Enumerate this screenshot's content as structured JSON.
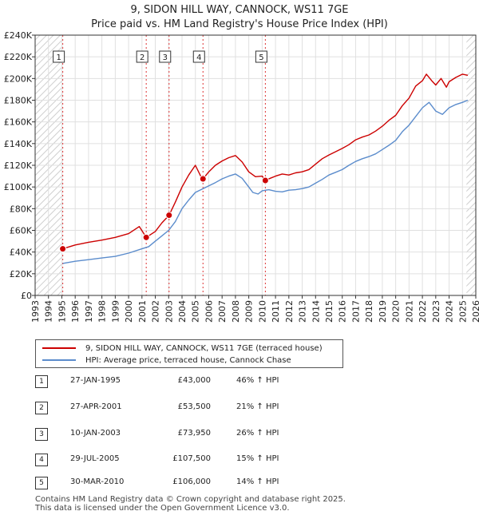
{
  "chart_data": {
    "type": "line",
    "title": "9, SIDON HILL WAY, CANNOCK, WS11 7GE",
    "subtitle": "Price paid vs. HM Land Registry's House Price Index (HPI)",
    "xlabel": "",
    "ylabel": "",
    "xlim": [
      1993,
      2026
    ],
    "ylim": [
      0,
      240000
    ],
    "x_ticks": [
      "1993",
      "1994",
      "1995",
      "1996",
      "1997",
      "1998",
      "1999",
      "2000",
      "2001",
      "2002",
      "2003",
      "2004",
      "2005",
      "2006",
      "2007",
      "2008",
      "2009",
      "2010",
      "2011",
      "2012",
      "2013",
      "2014",
      "2015",
      "2016",
      "2017",
      "2018",
      "2019",
      "2020",
      "2021",
      "2022",
      "2023",
      "2024",
      "2025",
      "2026"
    ],
    "y_ticks": [
      "£0",
      "£20K",
      "£40K",
      "£60K",
      "£80K",
      "£100K",
      "£120K",
      "£140K",
      "£160K",
      "£180K",
      "£200K",
      "£220K",
      "£240K"
    ],
    "hatched_ranges": [
      [
        1993,
        1995.07
      ],
      [
        2025.3,
        2026
      ]
    ],
    "series": [
      {
        "name": "9, SIDON HILL WAY, CANNOCK, WS11 7GE (terraced house)",
        "color": "#cc0000",
        "x": [
          1995.07,
          1996,
          1997,
          1998,
          1999,
          2000,
          2000.8,
          2001.32,
          2002,
          2002.5,
          2003.03,
          2003.5,
          2004,
          2004.5,
          2005,
          2005.4,
          2005.57,
          2006,
          2006.5,
          2007,
          2007.5,
          2008,
          2008.5,
          2009,
          2009.5,
          2010,
          2010.24,
          2010.6,
          2011,
          2011.5,
          2012,
          2012.5,
          2013,
          2013.5,
          2014,
          2014.5,
          2015,
          2015.5,
          2016,
          2016.5,
          2017,
          2017.5,
          2018,
          2018.5,
          2019,
          2019.5,
          2020,
          2020.5,
          2021,
          2021.5,
          2022,
          2022.3,
          2022.7,
          2023,
          2023.4,
          2023.8,
          2024,
          2024.5,
          2025,
          2025.4
        ],
        "values": [
          43000,
          46500,
          49000,
          51000,
          53500,
          57000,
          63500,
          53500,
          59000,
          67000,
          73950,
          86000,
          100000,
          111000,
          120000,
          110000,
          107500,
          114000,
          120000,
          124000,
          127000,
          129000,
          123000,
          114000,
          109500,
          110000,
          106000,
          108000,
          110000,
          112000,
          111000,
          113000,
          114000,
          116000,
          121000,
          126000,
          129500,
          132500,
          135500,
          139000,
          143500,
          146000,
          148000,
          151500,
          156000,
          161500,
          166000,
          175000,
          182000,
          193000,
          198000,
          204000,
          198000,
          194000,
          200000,
          192000,
          197000,
          201000,
          204000,
          203000
        ]
      },
      {
        "name": "HPI: Average price, terraced house, Cannock Chase",
        "color": "#5b8ccc",
        "x": [
          1995.07,
          1996,
          1997,
          1998,
          1999,
          2000,
          2001,
          2001.5,
          2002,
          2002.5,
          2003,
          2003.5,
          2004,
          2004.5,
          2005,
          2005.5,
          2006,
          2006.5,
          2007,
          2007.5,
          2008,
          2008.5,
          2009,
          2009.3,
          2009.7,
          2010,
          2010.5,
          2011,
          2011.5,
          2012,
          2012.5,
          2013,
          2013.5,
          2014,
          2014.5,
          2015,
          2015.5,
          2016,
          2016.5,
          2017,
          2017.5,
          2018,
          2018.5,
          2019,
          2019.5,
          2020,
          2020.5,
          2021,
          2021.5,
          2022,
          2022.5,
          2023,
          2023.5,
          2024,
          2024.5,
          2025,
          2025.4
        ],
        "values": [
          29500,
          31500,
          33000,
          34500,
          36000,
          39000,
          43000,
          45000,
          50000,
          55000,
          60000,
          68000,
          80000,
          88000,
          95000,
          98000,
          101000,
          104000,
          107500,
          110000,
          112000,
          108000,
          100000,
          95000,
          93500,
          96500,
          97500,
          96000,
          95500,
          97000,
          97500,
          98500,
          100000,
          103500,
          107000,
          111000,
          113500,
          116000,
          120000,
          123500,
          126000,
          128000,
          130500,
          134500,
          138500,
          143000,
          151000,
          157000,
          165000,
          173000,
          178000,
          170000,
          167000,
          173000,
          176000,
          178000,
          180000
        ]
      }
    ],
    "markers": [
      {
        "label": "1",
        "x": 1995.07,
        "y": 43000
      },
      {
        "label": "2",
        "x": 2001.32,
        "y": 53500
      },
      {
        "label": "3",
        "x": 2003.03,
        "y": 73950
      },
      {
        "label": "4",
        "x": 2005.57,
        "y": 107500
      },
      {
        "label": "5",
        "x": 2010.24,
        "y": 106000
      }
    ]
  },
  "legend": {
    "property": "9, SIDON HILL WAY, CANNOCK, WS11 7GE (terraced house)",
    "hpi": "HPI: Average price, terraced house, Cannock Chase"
  },
  "sales": [
    {
      "num": "1",
      "date": "27-JAN-1995",
      "price": "£43,000",
      "hpi": "46% ↑ HPI"
    },
    {
      "num": "2",
      "date": "27-APR-2001",
      "price": "£53,500",
      "hpi": "21% ↑ HPI"
    },
    {
      "num": "3",
      "date": "10-JAN-2003",
      "price": "£73,950",
      "hpi": "26% ↑ HPI"
    },
    {
      "num": "4",
      "date": "29-JUL-2005",
      "price": "£107,500",
      "hpi": "15% ↑ HPI"
    },
    {
      "num": "5",
      "date": "30-MAR-2010",
      "price": "£106,000",
      "hpi": "14% ↑ HPI"
    }
  ],
  "footer": {
    "line1": "Contains HM Land Registry data © Crown copyright and database right 2025.",
    "line2": "This data is licensed under the Open Government Licence v3.0."
  }
}
